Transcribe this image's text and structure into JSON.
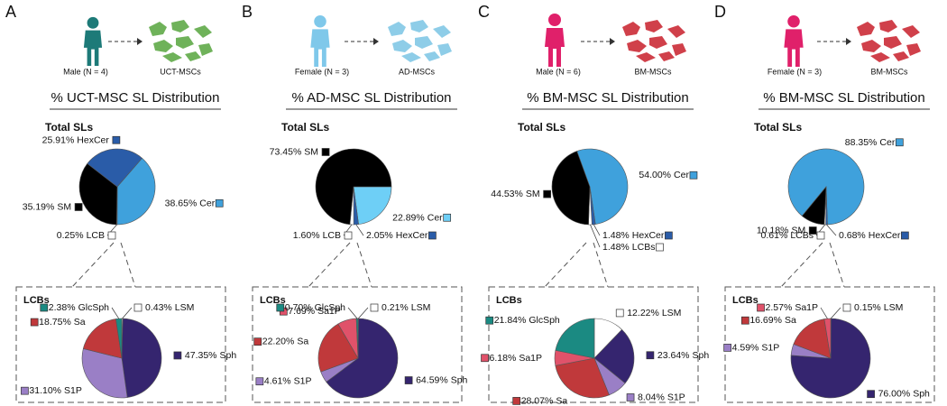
{
  "panels": [
    {
      "letter": "A",
      "donor": "Male (N = 4)",
      "cells": "UCT-MSCs"
    },
    {
      "letter": "B",
      "donor": "Female (N = 3)",
      "cells": "AD-MSCs"
    },
    {
      "letter": "C",
      "donor": "Male (N = 6)",
      "cells": "BM-MSCs"
    },
    {
      "letter": "D",
      "donor": "Female (N = 3)",
      "cells": "BM-MSCs"
    }
  ],
  "chart_data": [
    {
      "type": "pie",
      "title": "% UCT-MSC SL Distribution",
      "subtitle": "Total SLs",
      "categories": [
        "Cer",
        "LCB",
        "SM",
        "HexCer"
      ],
      "values": [
        38.65,
        0.25,
        35.19,
        25.91
      ],
      "value_labels": [
        "38.65%",
        "0.25%",
        "35.19%",
        "25.91%"
      ],
      "colors": [
        "#3fa1dc",
        "#ffffff",
        "#000000",
        "#2a5ca8"
      ]
    },
    {
      "type": "pie",
      "title": "LCBs",
      "categories": [
        "LSM",
        "Sph",
        "S1P",
        "Sa",
        "GlcSph"
      ],
      "values": [
        0.43,
        47.35,
        31.1,
        18.75,
        2.38
      ],
      "value_labels": [
        "0.43%",
        "47.35%",
        "31.10%",
        "18.75%",
        "2.38%"
      ],
      "colors": [
        "#ffffff",
        "#35256f",
        "#9a7fc6",
        "#c0393b",
        "#1b8a82"
      ]
    },
    {
      "type": "pie",
      "title": "% AD-MSC SL Distribution",
      "subtitle": "Total SLs",
      "categories": [
        "Cer",
        "HexCer",
        "LCB",
        "SM"
      ],
      "values": [
        22.89,
        2.05,
        1.6,
        73.45
      ],
      "value_labels": [
        "22.89%",
        "2.05%",
        "1.60%",
        "73.45%"
      ],
      "colors": [
        "#6ecff6",
        "#2a5ca8",
        "#ffffff",
        "#000000"
      ]
    },
    {
      "type": "pie",
      "title": "LCBs",
      "categories": [
        "LSM",
        "Sph",
        "S1P",
        "Sa",
        "Sa1P",
        "GlcSph"
      ],
      "values": [
        0.21,
        64.59,
        4.61,
        22.2,
        7.69,
        0.7
      ],
      "value_labels": [
        "0.21%",
        "64.59%",
        "4.61%",
        "22.20%",
        "7.69%",
        "0.70%"
      ],
      "colors": [
        "#ffffff",
        "#35256f",
        "#9a7fc6",
        "#c0393b",
        "#e0526a",
        "#1b8a82"
      ]
    },
    {
      "type": "pie",
      "title": "% BM-MSC SL Distribution",
      "subtitle": "Total SLs",
      "categories": [
        "Cer",
        "HexCer",
        "LCBs",
        "SM"
      ],
      "values": [
        54.0,
        1.48,
        1.48,
        44.53
      ],
      "value_labels": [
        "54.00%",
        "1.48%",
        "1.48%",
        "44.53%"
      ],
      "colors": [
        "#3fa1dc",
        "#2a5ca8",
        "#ffffff",
        "#000000"
      ]
    },
    {
      "type": "pie",
      "title": "LCBs",
      "categories": [
        "LSM",
        "Sph",
        "S1P",
        "Sa",
        "Sa1P",
        "GlcSph"
      ],
      "values": [
        12.22,
        23.64,
        8.04,
        28.07,
        6.18,
        21.84
      ],
      "value_labels": [
        "12.22%",
        "23.64%",
        "8.04%",
        "28.07%",
        "6.18%",
        "21.84%"
      ],
      "colors": [
        "#ffffff",
        "#35256f",
        "#9a7fc6",
        "#c0393b",
        "#e0526a",
        "#1b8a82"
      ]
    },
    {
      "type": "pie",
      "title": "% BM-MSC SL Distribution",
      "subtitle": "Total SLs",
      "categories": [
        "Cer",
        "HexCer",
        "LCBs",
        "SM"
      ],
      "values": [
        88.35,
        0.68,
        0.61,
        10.18
      ],
      "value_labels": [
        "88.35%",
        "0.68%",
        "0.61%",
        "10.18%"
      ],
      "colors": [
        "#3fa1dc",
        "#2a5ca8",
        "#ffffff",
        "#000000"
      ]
    },
    {
      "type": "pie",
      "title": "LCBs",
      "categories": [
        "LSM",
        "Sph",
        "S1P",
        "Sa",
        "Sa1P"
      ],
      "values": [
        0.15,
        76.0,
        4.59,
        16.69,
        2.57
      ],
      "value_labels": [
        "0.15%",
        "76.00%",
        "4.59%",
        "16.69%",
        "2.57%"
      ],
      "colors": [
        "#ffffff",
        "#35256f",
        "#9a7fc6",
        "#c0393b",
        "#e0526a"
      ]
    }
  ]
}
